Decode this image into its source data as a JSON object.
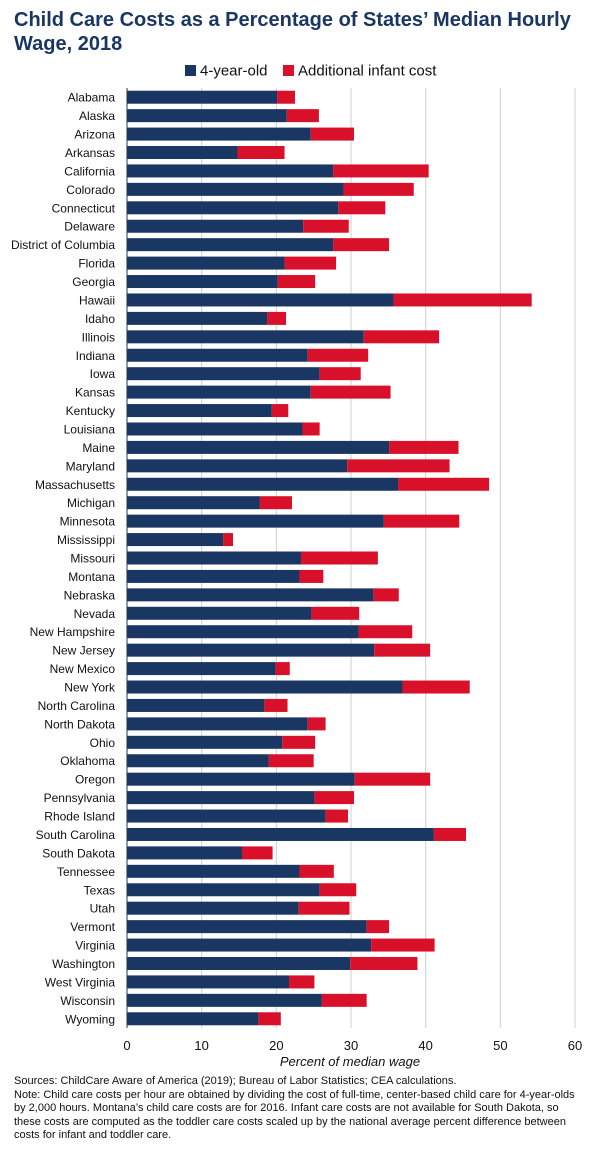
{
  "chart_data": {
    "type": "bar",
    "orientation": "horizontal",
    "stacked": true,
    "title": "Child Care Costs as a Percentage of States’ Median Hourly Wage, 2018",
    "xlabel": "Percent of median wage",
    "ylabel": "",
    "xlim": [
      0,
      60
    ],
    "xticks": [
      "0",
      "10",
      "20",
      "30",
      "40",
      "50",
      "60"
    ],
    "grid": true,
    "legend_position": "top",
    "categories": [
      "Alabama",
      "Alaska",
      "Arizona",
      "Arkansas",
      "California",
      "Colorado",
      "Connecticut",
      "Delaware",
      "District of Columbia",
      "Florida",
      "Georgia",
      "Hawaii",
      "Idaho",
      "Illinois",
      "Indiana",
      "Iowa",
      "Kansas",
      "Kentucky",
      "Louisiana",
      "Maine",
      "Maryland",
      "Massachusetts",
      "Michigan",
      "Minnesota",
      "Mississippi",
      "Missouri",
      "Montana",
      "Nebraska",
      "Nevada",
      "New Hampshire",
      "New Jersey",
      "New Mexico",
      "New York",
      "North Carolina",
      "North Dakota",
      "Ohio",
      "Oklahoma",
      "Oregon",
      "Pennsylvania",
      "Rhode Island",
      "South Carolina",
      "South Dakota",
      "Tennessee",
      "Texas",
      "Utah",
      "Vermont",
      "Virginia",
      "Washington",
      "West Virginia",
      "Wisconsin",
      "Wyoming"
    ],
    "series": [
      {
        "name": "4-year-old",
        "color": "#1a3764",
        "values": [
          20.1,
          21.4,
          24.6,
          14.8,
          27.6,
          29.0,
          28.3,
          23.6,
          27.6,
          21.1,
          20.2,
          35.7,
          18.8,
          31.7,
          24.2,
          25.8,
          24.6,
          19.4,
          23.5,
          35.1,
          29.5,
          36.3,
          17.8,
          34.4,
          12.9,
          23.3,
          23.1,
          33.0,
          24.7,
          31.0,
          33.1,
          19.9,
          36.9,
          18.4,
          24.2,
          20.8,
          19.0,
          30.5,
          25.1,
          26.6,
          41.1,
          15.4,
          23.1,
          25.8,
          23.0,
          32.1,
          32.7,
          29.9,
          21.7,
          26.1,
          17.6
        ]
      },
      {
        "name": "Additional infant cost",
        "color": "#d9102a",
        "values": [
          2.4,
          4.3,
          5.8,
          6.3,
          12.8,
          9.4,
          6.3,
          6.1,
          7.5,
          6.9,
          5.0,
          18.5,
          2.5,
          10.1,
          8.1,
          5.5,
          10.7,
          2.2,
          2.3,
          9.3,
          13.7,
          12.2,
          4.3,
          10.1,
          1.3,
          10.3,
          3.2,
          3.4,
          6.4,
          7.2,
          7.5,
          1.9,
          9.0,
          3.1,
          2.4,
          4.4,
          6.0,
          10.1,
          5.3,
          3.0,
          4.3,
          4.1,
          4.6,
          4.9,
          6.8,
          3.0,
          8.5,
          9.0,
          3.4,
          6.0,
          3.0
        ]
      }
    ]
  },
  "notes": {
    "sources": "Sources: ChildCare Aware of America (2019); Bureau of Labor Statistics; CEA calculations.",
    "note": "Note: Child care costs per hour are obtained by dividing the cost of full-time, center-based child care for 4-year-olds by 2,000 hours. Montana’s child care costs are for 2016. Infant care costs are not available for South Dakota, so these costs are computed as the toddler care costs scaled up by the national average percent difference between costs for infant and toddler care."
  }
}
